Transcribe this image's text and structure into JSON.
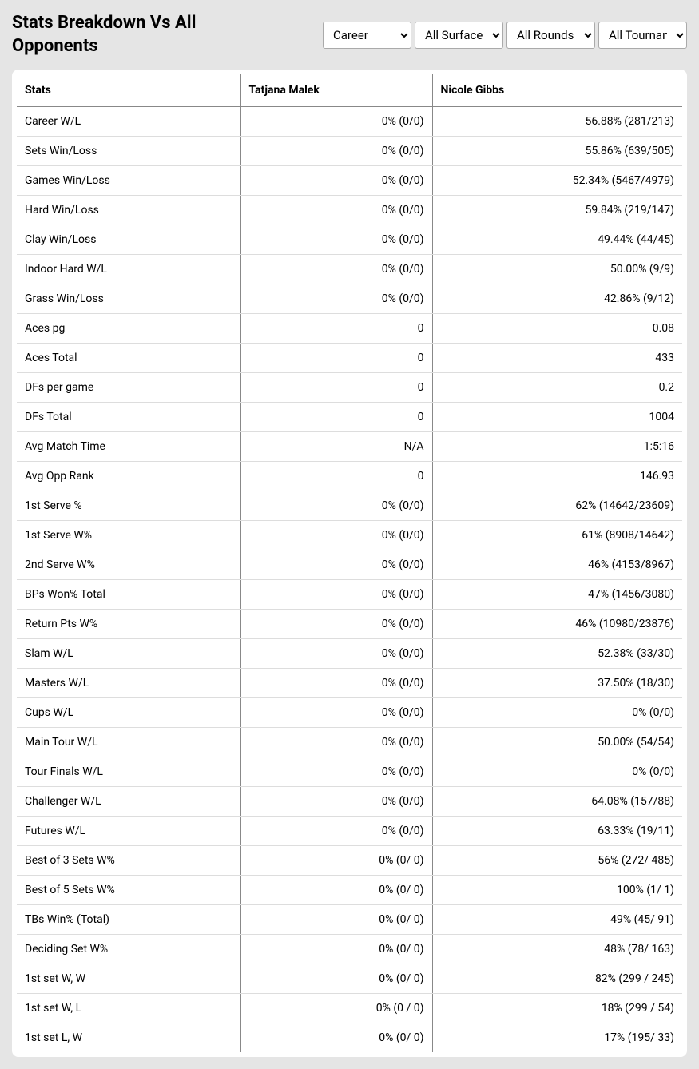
{
  "title": "Stats Breakdown Vs All Opponents",
  "filters": {
    "period": {
      "selected": "Career",
      "options": [
        "Career"
      ]
    },
    "surface": {
      "selected": "All Surfaces",
      "options": [
        "All Surfaces"
      ]
    },
    "round": {
      "selected": "All Rounds",
      "options": [
        "All Rounds"
      ]
    },
    "tournament": {
      "selected": "All Tournaments",
      "options": [
        "All Tournaments"
      ]
    }
  },
  "columns": {
    "stats": "Stats",
    "player1": "Tatjana Malek",
    "player2": "Nicole Gibbs"
  },
  "rows": [
    {
      "label": "Career W/L",
      "p1": "0% (0/0)",
      "p2": "56.88% (281/213)"
    },
    {
      "label": "Sets Win/Loss",
      "p1": "0% (0/0)",
      "p2": "55.86% (639/505)"
    },
    {
      "label": "Games Win/Loss",
      "p1": "0% (0/0)",
      "p2": "52.34% (5467/4979)"
    },
    {
      "label": "Hard Win/Loss",
      "p1": "0% (0/0)",
      "p2": "59.84% (219/147)"
    },
    {
      "label": "Clay Win/Loss",
      "p1": "0% (0/0)",
      "p2": "49.44% (44/45)"
    },
    {
      "label": "Indoor Hard W/L",
      "p1": "0% (0/0)",
      "p2": "50.00% (9/9)"
    },
    {
      "label": "Grass Win/Loss",
      "p1": "0% (0/0)",
      "p2": "42.86% (9/12)"
    },
    {
      "label": "Aces pg",
      "p1": "0",
      "p2": "0.08"
    },
    {
      "label": "Aces Total",
      "p1": "0",
      "p2": "433"
    },
    {
      "label": "DFs per game",
      "p1": "0",
      "p2": "0.2"
    },
    {
      "label": "DFs Total",
      "p1": "0",
      "p2": "1004"
    },
    {
      "label": "Avg Match Time",
      "p1": "N/A",
      "p2": "1:5:16"
    },
    {
      "label": "Avg Opp Rank",
      "p1": "0",
      "p2": "146.93"
    },
    {
      "label": "1st Serve %",
      "p1": "0% (0/0)",
      "p2": "62% (14642/23609)"
    },
    {
      "label": "1st Serve W%",
      "p1": "0% (0/0)",
      "p2": "61% (8908/14642)"
    },
    {
      "label": "2nd Serve W%",
      "p1": "0% (0/0)",
      "p2": "46% (4153/8967)"
    },
    {
      "label": "BPs Won% Total",
      "p1": "0% (0/0)",
      "p2": "47% (1456/3080)"
    },
    {
      "label": "Return Pts W%",
      "p1": "0% (0/0)",
      "p2": "46% (10980/23876)"
    },
    {
      "label": "Slam W/L",
      "p1": "0% (0/0)",
      "p2": "52.38% (33/30)"
    },
    {
      "label": "Masters W/L",
      "p1": "0% (0/0)",
      "p2": "37.50% (18/30)"
    },
    {
      "label": "Cups W/L",
      "p1": "0% (0/0)",
      "p2": "0% (0/0)"
    },
    {
      "label": "Main Tour W/L",
      "p1": "0% (0/0)",
      "p2": "50.00% (54/54)"
    },
    {
      "label": "Tour Finals W/L",
      "p1": "0% (0/0)",
      "p2": "0% (0/0)"
    },
    {
      "label": "Challenger W/L",
      "p1": "0% (0/0)",
      "p2": "64.08% (157/88)"
    },
    {
      "label": "Futures W/L",
      "p1": "0% (0/0)",
      "p2": "63.33% (19/11)"
    },
    {
      "label": "Best of 3 Sets W%",
      "p1": "0% (0/ 0)",
      "p2": "56% (272/ 485)"
    },
    {
      "label": "Best of 5 Sets W%",
      "p1": "0% (0/ 0)",
      "p2": "100% (1/ 1)"
    },
    {
      "label": "TBs Win% (Total)",
      "p1": "0% (0/ 0)",
      "p2": "49% (45/ 91)"
    },
    {
      "label": "Deciding Set W%",
      "p1": "0% (0/ 0)",
      "p2": "48% (78/ 163)"
    },
    {
      "label": "1st set W, W",
      "p1": "0% (0/ 0)",
      "p2": "82% (299 / 245)"
    },
    {
      "label": "1st set W, L",
      "p1": "0% (0 / 0)",
      "p2": "18% (299 / 54)"
    },
    {
      "label": "1st set L, W",
      "p1": "0% (0/ 0)",
      "p2": "17% (195/ 33)"
    }
  ]
}
